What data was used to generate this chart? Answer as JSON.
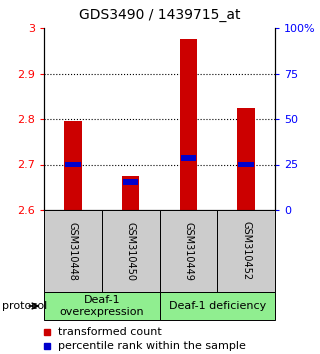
{
  "title": "GDS3490 / 1439715_at",
  "samples": [
    "GSM310448",
    "GSM310450",
    "GSM310449",
    "GSM310452"
  ],
  "bar_values": [
    2.795,
    2.675,
    2.975,
    2.825
  ],
  "percentile_values": [
    2.7,
    2.662,
    2.715,
    2.7
  ],
  "ylim_left": [
    2.6,
    3.0
  ],
  "yticks_left": [
    2.6,
    2.7,
    2.8,
    2.9,
    3.0
  ],
  "ytick_left_labels": [
    "2.6",
    "2.7",
    "2.8",
    "2.9",
    "3"
  ],
  "yticks_right": [
    0,
    25,
    50,
    75,
    100
  ],
  "yticks_right_labels": [
    "0",
    "25",
    "50",
    "75",
    "100%"
  ],
  "bar_color": "#cc0000",
  "percentile_color": "#0000cc",
  "bar_width": 0.3,
  "group1_label": "Deaf-1\noverexpression",
  "group2_label": "Deaf-1 deficiency",
  "group_color": "#90ee90",
  "protocol_label": "protocol",
  "legend_bar_label": "transformed count",
  "legend_pct_label": "percentile rank within the sample",
  "title_fontsize": 10,
  "tick_fontsize": 8,
  "sample_fontsize": 7,
  "group_fontsize": 8,
  "legend_fontsize": 8,
  "background_color": "#ffffff",
  "plot_bg": "#ffffff",
  "sample_label_bg": "#cccccc"
}
